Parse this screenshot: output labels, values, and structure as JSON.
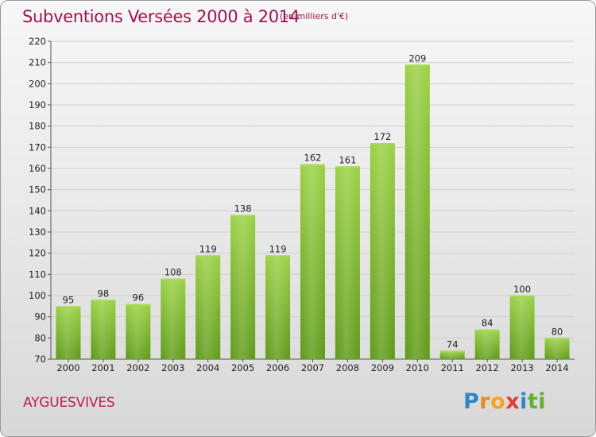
{
  "header": {
    "title": "Subventions Versées 2000 à 2014",
    "unit": "(en milliers d'€)"
  },
  "footer": {
    "commune": "AYGUESVIVES",
    "logo_letters": [
      "P",
      "r",
      "o",
      "x",
      "i",
      "t",
      "i"
    ]
  },
  "colors": {
    "title": "#a4124a",
    "bar_top": "#9ad143",
    "bar_bottom": "#5e9a18",
    "grid": "#d0d0d0"
  },
  "chart_data": {
    "type": "bar",
    "title": "Subventions Versées 2000 à 2014",
    "subtitle": "(en milliers d'€)",
    "xlabel": "",
    "ylabel": "",
    "categories": [
      "2000",
      "2001",
      "2002",
      "2003",
      "2004",
      "2005",
      "2006",
      "2007",
      "2008",
      "2009",
      "2010",
      "2011",
      "2012",
      "2013",
      "2014"
    ],
    "values": [
      95,
      98,
      96,
      108,
      119,
      138,
      119,
      162,
      161,
      172,
      209,
      74,
      84,
      100,
      80
    ],
    "ylim": [
      70,
      220
    ],
    "yticks": [
      70,
      80,
      90,
      100,
      110,
      120,
      130,
      140,
      150,
      160,
      170,
      180,
      190,
      200,
      210,
      220
    ],
    "grid": true,
    "data_labels": true
  }
}
